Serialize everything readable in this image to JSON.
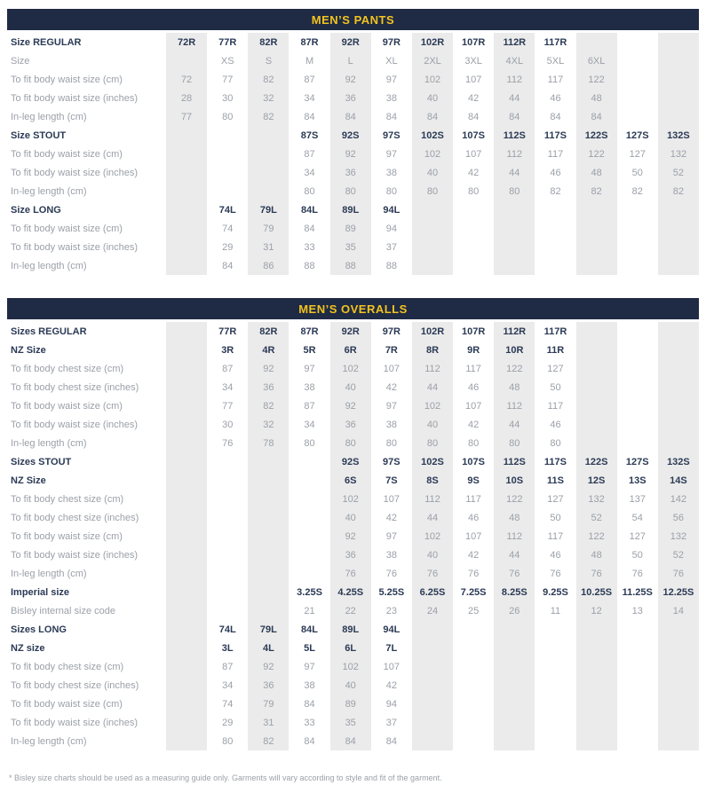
{
  "colors": {
    "header_bg": "#1F2A44",
    "header_fg": "#F2C31F",
    "column_band": "#EBEBEB",
    "text_gray": "#9BA0A8",
    "text_navy": "#2B3A55",
    "page_bg": "#FFFFFF"
  },
  "footnote": "* Bisley size charts should be used as a measuring guide only. Garments will vary according to style and fit of the garment.",
  "tables": [
    {
      "title": "MEN’S PANTS",
      "rows": [
        {
          "label": "Size REGULAR",
          "bold": true,
          "cells": [
            "72R",
            "77R",
            "82R",
            "87R",
            "92R",
            "97R",
            "102R",
            "107R",
            "112R",
            "117R",
            "",
            "",
            ""
          ]
        },
        {
          "label": "Size",
          "bold": false,
          "cells": [
            "",
            "XS",
            "S",
            "M",
            "L",
            "XL",
            "2XL",
            "3XL",
            "4XL",
            "5XL",
            "6XL",
            "",
            ""
          ]
        },
        {
          "label": "To fit body waist size (cm)",
          "bold": false,
          "cells": [
            "72",
            "77",
            "82",
            "87",
            "92",
            "97",
            "102",
            "107",
            "112",
            "117",
            "122",
            "",
            ""
          ]
        },
        {
          "label": "To fit body waist size (inches)",
          "bold": false,
          "cells": [
            "28",
            "30",
            "32",
            "34",
            "36",
            "38",
            "40",
            "42",
            "44",
            "46",
            "48",
            "",
            ""
          ]
        },
        {
          "label": "In-leg length (cm)",
          "bold": false,
          "cells": [
            "77",
            "80",
            "82",
            "84",
            "84",
            "84",
            "84",
            "84",
            "84",
            "84",
            "84",
            "",
            ""
          ]
        },
        {
          "label": "Size STOUT",
          "bold": true,
          "cells": [
            "",
            "",
            "",
            "87S",
            "92S",
            "97S",
            "102S",
            "107S",
            "112S",
            "117S",
            "122S",
            "127S",
            "132S"
          ]
        },
        {
          "label": "To fit body waist size (cm)",
          "bold": false,
          "cells": [
            "",
            "",
            "",
            "87",
            "92",
            "97",
            "102",
            "107",
            "112",
            "117",
            "122",
            "127",
            "132"
          ]
        },
        {
          "label": "To fit body waist size (inches)",
          "bold": false,
          "cells": [
            "",
            "",
            "",
            "34",
            "36",
            "38",
            "40",
            "42",
            "44",
            "46",
            "48",
            "50",
            "52"
          ]
        },
        {
          "label": "In-leg length (cm)",
          "bold": false,
          "cells": [
            "",
            "",
            "",
            "80",
            "80",
            "80",
            "80",
            "80",
            "80",
            "82",
            "82",
            "82",
            "82"
          ]
        },
        {
          "label": "Size LONG",
          "bold": true,
          "cells": [
            "",
            "74L",
            "79L",
            "84L",
            "89L",
            "94L",
            "",
            "",
            "",
            "",
            "",
            "",
            ""
          ]
        },
        {
          "label": "To fit body waist size (cm)",
          "bold": false,
          "cells": [
            "",
            "74",
            "79",
            "84",
            "89",
            "94",
            "",
            "",
            "",
            "",
            "",
            "",
            ""
          ]
        },
        {
          "label": "To fit body waist size (inches)",
          "bold": false,
          "cells": [
            "",
            "29",
            "31",
            "33",
            "35",
            "37",
            "",
            "",
            "",
            "",
            "",
            "",
            ""
          ]
        },
        {
          "label": "In-leg length (cm)",
          "bold": false,
          "cells": [
            "",
            "84",
            "86",
            "88",
            "88",
            "88",
            "",
            "",
            "",
            "",
            "",
            "",
            ""
          ]
        }
      ]
    },
    {
      "title": "MEN’S OVERALLS",
      "rows": [
        {
          "label": "Sizes REGULAR",
          "bold": true,
          "cells": [
            "",
            "77R",
            "82R",
            "87R",
            "92R",
            "97R",
            "102R",
            "107R",
            "112R",
            "117R",
            "",
            "",
            ""
          ]
        },
        {
          "label": "NZ Size",
          "bold": true,
          "cells": [
            "",
            "3R",
            "4R",
            "5R",
            "6R",
            "7R",
            "8R",
            "9R",
            "10R",
            "11R",
            "",
            "",
            ""
          ]
        },
        {
          "label": "To fit body chest size (cm)",
          "bold": false,
          "cells": [
            "",
            "87",
            "92",
            "97",
            "102",
            "107",
            "112",
            "117",
            "122",
            "127",
            "",
            "",
            ""
          ]
        },
        {
          "label": "To fit body chest size (inches)",
          "bold": false,
          "cells": [
            "",
            "34",
            "36",
            "38",
            "40",
            "42",
            "44",
            "46",
            "48",
            "50",
            "",
            "",
            ""
          ]
        },
        {
          "label": "To fit body waist size (cm)",
          "bold": false,
          "cells": [
            "",
            "77",
            "82",
            "87",
            "92",
            "97",
            "102",
            "107",
            "112",
            "117",
            "",
            "",
            ""
          ]
        },
        {
          "label": "To fit body waist size (inches)",
          "bold": false,
          "cells": [
            "",
            "30",
            "32",
            "34",
            "36",
            "38",
            "40",
            "42",
            "44",
            "46",
            "",
            "",
            ""
          ]
        },
        {
          "label": "In-leg length (cm)",
          "bold": false,
          "cells": [
            "",
            "76",
            "78",
            "80",
            "80",
            "80",
            "80",
            "80",
            "80",
            "80",
            "",
            "",
            ""
          ]
        },
        {
          "label": "Sizes STOUT",
          "bold": true,
          "cells": [
            "",
            "",
            "",
            "",
            "92S",
            "97S",
            "102S",
            "107S",
            "112S",
            "117S",
            "122S",
            "127S",
            "132S"
          ]
        },
        {
          "label": "NZ Size",
          "bold": true,
          "cells": [
            "",
            "",
            "",
            "",
            "6S",
            "7S",
            "8S",
            "9S",
            "10S",
            "11S",
            "12S",
            "13S",
            "14S"
          ]
        },
        {
          "label": "To fit body chest size (cm)",
          "bold": false,
          "cells": [
            "",
            "",
            "",
            "",
            "102",
            "107",
            "112",
            "117",
            "122",
            "127",
            "132",
            "137",
            "142"
          ]
        },
        {
          "label": "To fit body chest size (inches)",
          "bold": false,
          "cells": [
            "",
            "",
            "",
            "",
            "40",
            "42",
            "44",
            "46",
            "48",
            "50",
            "52",
            "54",
            "56"
          ]
        },
        {
          "label": "To fit body waist size (cm)",
          "bold": false,
          "cells": [
            "",
            "",
            "",
            "",
            "92",
            "97",
            "102",
            "107",
            "112",
            "117",
            "122",
            "127",
            "132"
          ]
        },
        {
          "label": "To fit body waist size (inches)",
          "bold": false,
          "cells": [
            "",
            "",
            "",
            "",
            "36",
            "38",
            "40",
            "42",
            "44",
            "46",
            "48",
            "50",
            "52"
          ]
        },
        {
          "label": "In-leg length (cm)",
          "bold": false,
          "cells": [
            "",
            "",
            "",
            "",
            "76",
            "76",
            "76",
            "76",
            "76",
            "76",
            "76",
            "76",
            "76"
          ]
        },
        {
          "label": "Imperial size",
          "bold": true,
          "cells": [
            "",
            "",
            "",
            "3.25S",
            "4.25S",
            "5.25S",
            "6.25S",
            "7.25S",
            "8.25S",
            "9.25S",
            "10.25S",
            "11.25S",
            "12.25S"
          ]
        },
        {
          "label": "Bisley internal size code",
          "bold": false,
          "cells": [
            "",
            "",
            "",
            "21",
            "22",
            "23",
            "24",
            "25",
            "26",
            "11",
            "12",
            "13",
            "14"
          ]
        },
        {
          "label": "Sizes LONG",
          "bold": true,
          "cells": [
            "",
            "74L",
            "79L",
            "84L",
            "89L",
            "94L",
            "",
            "",
            "",
            "",
            "",
            "",
            ""
          ]
        },
        {
          "label": "NZ size",
          "bold": true,
          "cells": [
            "",
            "3L",
            "4L",
            "5L",
            "6L",
            "7L",
            "",
            "",
            "",
            "",
            "",
            "",
            ""
          ]
        },
        {
          "label": "To fit body chest size (cm)",
          "bold": false,
          "cells": [
            "",
            "87",
            "92",
            "97",
            "102",
            "107",
            "",
            "",
            "",
            "",
            "",
            "",
            ""
          ]
        },
        {
          "label": "To fit body chest size (inches)",
          "bold": false,
          "cells": [
            "",
            "34",
            "36",
            "38",
            "40",
            "42",
            "",
            "",
            "",
            "",
            "",
            "",
            ""
          ]
        },
        {
          "label": "To fit body waist size (cm)",
          "bold": false,
          "cells": [
            "",
            "74",
            "79",
            "84",
            "89",
            "94",
            "",
            "",
            "",
            "",
            "",
            "",
            ""
          ]
        },
        {
          "label": "To fit body waist size (inches)",
          "bold": false,
          "cells": [
            "",
            "29",
            "31",
            "33",
            "35",
            "37",
            "",
            "",
            "",
            "",
            "",
            "",
            ""
          ]
        },
        {
          "label": "In-leg length (cm)",
          "bold": false,
          "cells": [
            "",
            "80",
            "82",
            "84",
            "84",
            "84",
            "",
            "",
            "",
            "",
            "",
            "",
            ""
          ]
        }
      ]
    }
  ]
}
